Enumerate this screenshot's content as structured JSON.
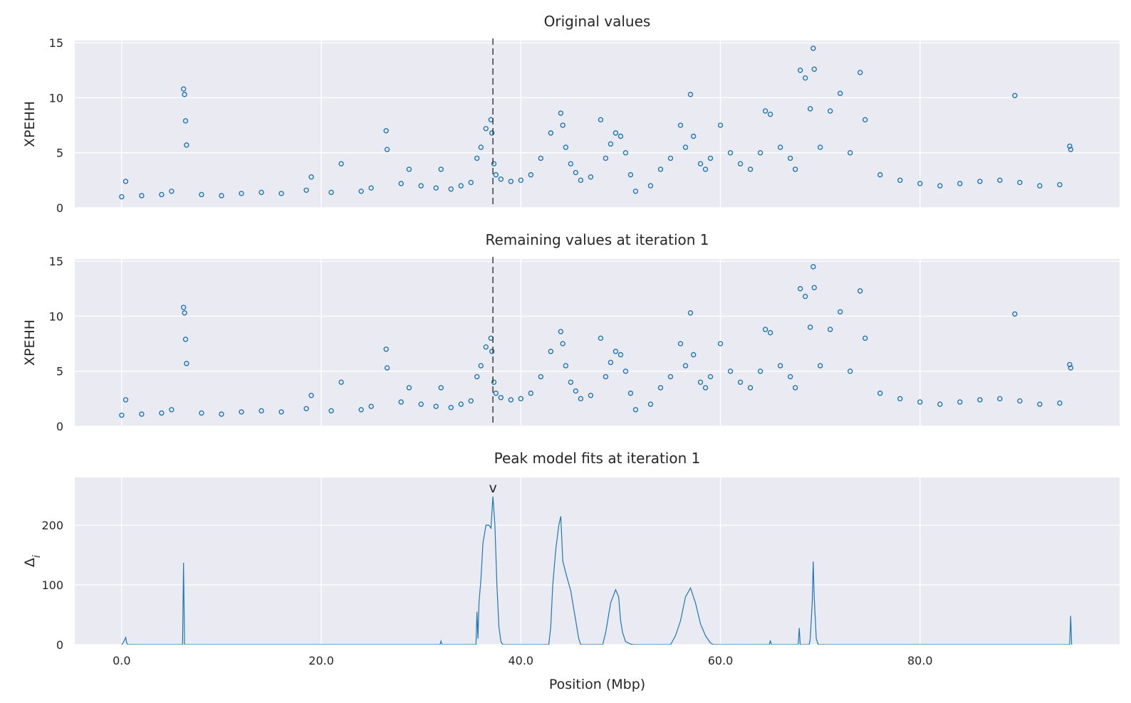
{
  "colors": {
    "series": "#1f77b4",
    "panel_background": "#eaeaf2",
    "grid": "#ffffff",
    "marker_line": "#222222"
  },
  "chart_data": [
    {
      "type": "scatter",
      "title": "Original values",
      "xlabel": "",
      "ylabel": "XPEHH",
      "xlim": [
        -4.7,
        100.0
      ],
      "ylim": [
        0,
        15.2
      ],
      "x_ticks": [
        0,
        20,
        40,
        60,
        80
      ],
      "x_tick_labels": [],
      "y_ticks": [
        0,
        5,
        10,
        15
      ],
      "y_tick_labels": [
        "0",
        "5",
        "10",
        "15"
      ],
      "grid": true,
      "vline_x": 37.2,
      "marker_style": "open-circle",
      "series": [
        {
          "x": [
            0.0,
            0.4,
            2.0,
            4.0,
            5.0,
            6.2,
            6.3,
            6.4,
            6.5,
            8.0,
            10.0,
            12.0,
            14.0,
            16.0,
            18.5,
            19.0,
            21.0,
            22.0,
            24.0,
            25.0,
            26.5,
            26.6,
            28.0,
            28.8,
            30.0,
            31.5,
            32.0,
            33.0,
            34.0,
            35.0,
            35.6,
            36.0,
            36.5,
            37.0,
            37.1,
            37.3,
            37.5,
            38.0,
            39.0,
            40.0,
            41.0,
            42.0,
            43.0,
            44.0,
            44.2,
            44.5,
            45.0,
            45.5,
            46.0,
            47.0,
            48.0,
            48.5,
            49.0,
            49.5,
            50.0,
            50.5,
            51.0,
            51.5,
            53.0,
            54.0,
            55.0,
            56.0,
            56.5,
            57.0,
            57.3,
            58.0,
            58.5,
            59.0,
            60.0,
            61.0,
            62.0,
            63.0,
            64.0,
            64.5,
            65.0,
            66.0,
            67.0,
            67.5,
            68.0,
            68.5,
            69.0,
            69.3,
            69.4,
            70.0,
            71.0,
            72.0,
            73.0,
            74.0,
            74.5,
            76.0,
            78.0,
            80.0,
            82.0,
            84.0,
            86.0,
            88.0,
            89.5,
            90.0,
            92.0,
            94.0,
            95.0,
            95.1
          ],
          "y": [
            1.0,
            2.4,
            1.1,
            1.2,
            1.5,
            10.8,
            10.3,
            7.9,
            5.7,
            1.2,
            1.1,
            1.3,
            1.4,
            1.3,
            1.6,
            2.8,
            1.4,
            4.0,
            1.5,
            1.8,
            7.0,
            5.3,
            2.2,
            3.5,
            2.0,
            1.8,
            3.5,
            1.7,
            2.0,
            2.3,
            4.5,
            5.5,
            7.2,
            8.0,
            6.8,
            4.0,
            3.0,
            2.6,
            2.4,
            2.5,
            3.0,
            4.5,
            6.8,
            8.6,
            7.5,
            5.5,
            4.0,
            3.2,
            2.5,
            2.8,
            8.0,
            4.5,
            5.8,
            6.8,
            6.5,
            5.0,
            3.0,
            1.5,
            2.0,
            3.5,
            4.5,
            7.5,
            5.5,
            10.3,
            6.5,
            4.0,
            3.5,
            4.5,
            7.5,
            5.0,
            4.0,
            3.5,
            5.0,
            8.8,
            8.5,
            5.5,
            4.5,
            3.5,
            12.5,
            11.8,
            9.0,
            14.5,
            12.6,
            5.5,
            8.8,
            10.4,
            5.0,
            12.3,
            8.0,
            3.0,
            2.5,
            2.2,
            2.0,
            2.2,
            2.4,
            2.5,
            10.2,
            2.3,
            2.0,
            2.1,
            5.6,
            5.3
          ]
        }
      ]
    },
    {
      "type": "scatter",
      "title": "Remaining values at iteration 1",
      "xlabel": "",
      "ylabel": "XPEHH",
      "xlim": [
        -4.7,
        100.0
      ],
      "ylim": [
        0,
        15.2
      ],
      "x_ticks": [
        0,
        20,
        40,
        60,
        80
      ],
      "x_tick_labels": [],
      "y_ticks": [
        0,
        5,
        10,
        15
      ],
      "y_tick_labels": [
        "0",
        "5",
        "10",
        "15"
      ],
      "grid": true,
      "vline_x": 37.2,
      "marker_style": "open-circle",
      "series": [
        {
          "x": [
            0.0,
            0.4,
            2.0,
            4.0,
            5.0,
            6.2,
            6.3,
            6.4,
            6.5,
            8.0,
            10.0,
            12.0,
            14.0,
            16.0,
            18.5,
            19.0,
            21.0,
            22.0,
            24.0,
            25.0,
            26.5,
            26.6,
            28.0,
            28.8,
            30.0,
            31.5,
            32.0,
            33.0,
            34.0,
            35.0,
            35.6,
            36.0,
            36.5,
            37.0,
            37.1,
            37.3,
            37.5,
            38.0,
            39.0,
            40.0,
            41.0,
            42.0,
            43.0,
            44.0,
            44.2,
            44.5,
            45.0,
            45.5,
            46.0,
            47.0,
            48.0,
            48.5,
            49.0,
            49.5,
            50.0,
            50.5,
            51.0,
            51.5,
            53.0,
            54.0,
            55.0,
            56.0,
            56.5,
            57.0,
            57.3,
            58.0,
            58.5,
            59.0,
            60.0,
            61.0,
            62.0,
            63.0,
            64.0,
            64.5,
            65.0,
            66.0,
            67.0,
            67.5,
            68.0,
            68.5,
            69.0,
            69.3,
            69.4,
            70.0,
            71.0,
            72.0,
            73.0,
            74.0,
            74.5,
            76.0,
            78.0,
            80.0,
            82.0,
            84.0,
            86.0,
            88.0,
            89.5,
            90.0,
            92.0,
            94.0,
            95.0,
            95.1
          ],
          "y": [
            1.0,
            2.4,
            1.1,
            1.2,
            1.5,
            10.8,
            10.3,
            7.9,
            5.7,
            1.2,
            1.1,
            1.3,
            1.4,
            1.3,
            1.6,
            2.8,
            1.4,
            4.0,
            1.5,
            1.8,
            7.0,
            5.3,
            2.2,
            3.5,
            2.0,
            1.8,
            3.5,
            1.7,
            2.0,
            2.3,
            4.5,
            5.5,
            7.2,
            8.0,
            6.8,
            4.0,
            3.0,
            2.6,
            2.4,
            2.5,
            3.0,
            4.5,
            6.8,
            8.6,
            7.5,
            5.5,
            4.0,
            3.2,
            2.5,
            2.8,
            8.0,
            4.5,
            5.8,
            6.8,
            6.5,
            5.0,
            3.0,
            1.5,
            2.0,
            3.5,
            4.5,
            7.5,
            5.5,
            10.3,
            6.5,
            4.0,
            3.5,
            4.5,
            7.5,
            5.0,
            4.0,
            3.5,
            5.0,
            8.8,
            8.5,
            5.5,
            4.5,
            3.5,
            12.5,
            11.8,
            9.0,
            14.5,
            12.6,
            5.5,
            8.8,
            10.4,
            5.0,
            12.3,
            8.0,
            3.0,
            2.5,
            2.2,
            2.0,
            2.2,
            2.4,
            2.5,
            10.2,
            2.3,
            2.0,
            2.1,
            5.6,
            5.3
          ]
        }
      ]
    },
    {
      "type": "line",
      "title": "Peak model fits at iteration 1",
      "xlabel": "Position (Mbp)",
      "ylabel": "Δ",
      "ylabel_subscript": "i",
      "xlim": [
        -4.7,
        100.0
      ],
      "ylim": [
        0,
        280
      ],
      "x_ticks": [
        0,
        20,
        40,
        60,
        80
      ],
      "x_tick_labels": [
        "0.0",
        "20.0",
        "40.0",
        "60.0",
        "80.0"
      ],
      "y_ticks": [
        0,
        100,
        200
      ],
      "y_tick_labels": [
        "0",
        "100",
        "200"
      ],
      "grid": true,
      "peak_marker": "v",
      "peak_marker_x": 37.2,
      "peak_marker_y": 262,
      "series": [
        {
          "x": [
            0.0,
            0.2,
            0.4,
            0.5,
            0.6,
            6.1,
            6.2,
            6.3,
            31.9,
            32.0,
            32.1,
            35.5,
            35.6,
            35.7,
            35.8,
            36.0,
            36.2,
            36.5,
            36.8,
            37.0,
            37.2,
            37.4,
            37.6,
            37.8,
            38.0,
            38.2,
            42.8,
            43.0,
            43.2,
            43.5,
            43.8,
            44.0,
            44.2,
            44.5,
            45.0,
            45.5,
            45.8,
            46.0,
            48.2,
            48.5,
            49.0,
            49.5,
            49.8,
            50.0,
            50.2,
            50.5,
            51.0,
            51.3,
            55.0,
            55.5,
            56.0,
            56.5,
            57.0,
            57.5,
            58.0,
            58.5,
            59.0,
            59.3,
            64.9,
            65.0,
            65.1,
            67.8,
            67.9,
            68.0,
            68.9,
            69.0,
            69.2,
            69.3,
            69.4,
            69.6,
            69.8,
            95.0,
            95.1,
            95.2
          ],
          "y": [
            0,
            5,
            12,
            3,
            0,
            0,
            137,
            0,
            0,
            6,
            0,
            0,
            55,
            10,
            70,
            110,
            170,
            200,
            200,
            195,
            248,
            200,
            100,
            30,
            5,
            0,
            0,
            30,
            100,
            160,
            200,
            215,
            140,
            120,
            90,
            40,
            10,
            0,
            0,
            20,
            70,
            92,
            80,
            40,
            20,
            5,
            1,
            0,
            0,
            15,
            40,
            80,
            95,
            70,
            35,
            15,
            3,
            0,
            0,
            7,
            0,
            0,
            28,
            0,
            0,
            10,
            70,
            139,
            80,
            10,
            0,
            0,
            48,
            0
          ]
        }
      ]
    }
  ]
}
